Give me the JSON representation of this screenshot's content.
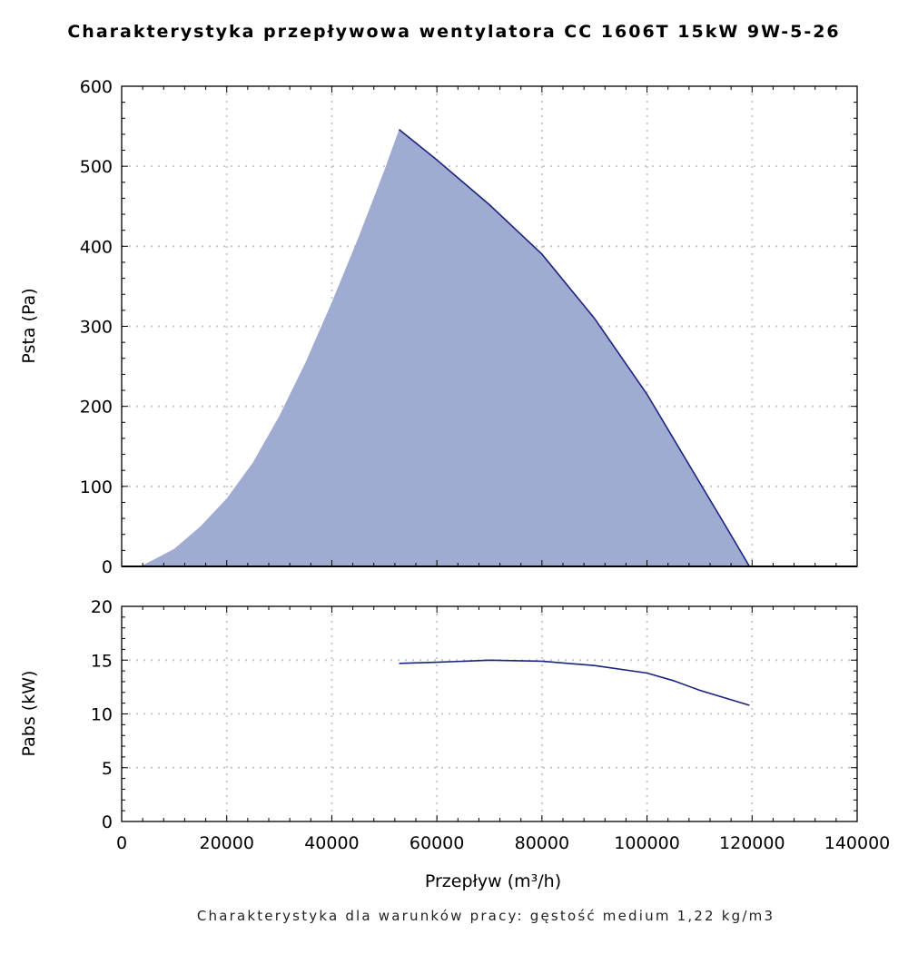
{
  "title": "Charakterystyka przepływowa wentylatora CC 1606T 15kW 9W-5-26",
  "footnote": "Charakterystyka dla warunków pracy: gęstość medium 1,22 kg/m3",
  "colors": {
    "fill": "#9fabd1",
    "line": "#1a237e",
    "grid": "#c8c8c8",
    "axis": "#000000"
  },
  "chart_data": [
    {
      "type": "area",
      "ylabel": "Psta (Pa)",
      "xlabel": "",
      "xlim": [
        0,
        140000
      ],
      "ylim": [
        0,
        600
      ],
      "x_ticks": [
        0,
        20000,
        40000,
        60000,
        80000,
        100000,
        120000,
        140000
      ],
      "y_ticks": [
        0,
        100,
        200,
        300,
        400,
        500,
        600
      ],
      "grid": true,
      "series": [
        {
          "kind": "system-curve-area",
          "x": [
            3500,
            6000,
            10000,
            15000,
            20000,
            25000,
            30000,
            35000,
            40000,
            45000,
            50000,
            52800
          ],
          "y": [
            0,
            8,
            22,
            50,
            85,
            130,
            188,
            255,
            330,
            410,
            495,
            546
          ]
        },
        {
          "kind": "fan-curve",
          "x": [
            52800,
            60000,
            70000,
            80000,
            90000,
            100000,
            110000,
            115000,
            119500
          ],
          "y": [
            546,
            508,
            452,
            390,
            310,
            215,
            105,
            50,
            0
          ]
        }
      ]
    },
    {
      "type": "line",
      "ylabel": "Pabs (kW)",
      "xlabel": "Przepływ (m³/h)",
      "xlim": [
        0,
        140000
      ],
      "ylim": [
        0,
        20
      ],
      "x_ticks": [
        0,
        20000,
        40000,
        60000,
        80000,
        100000,
        120000,
        140000
      ],
      "y_ticks": [
        0,
        5,
        10,
        15,
        20
      ],
      "grid": true,
      "series": [
        {
          "kind": "power-curve",
          "x": [
            52800,
            60000,
            70000,
            80000,
            90000,
            100000,
            105000,
            110000,
            119500
          ],
          "y": [
            14.7,
            14.8,
            15.0,
            14.9,
            14.5,
            13.8,
            13.1,
            12.2,
            10.8
          ]
        }
      ]
    }
  ]
}
